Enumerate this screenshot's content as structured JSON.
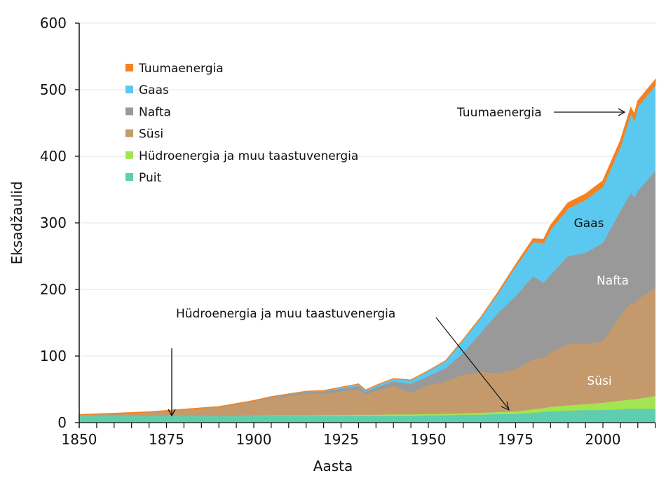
{
  "chart_data": {
    "type": "area",
    "stacked": true,
    "xlabel": "Aasta",
    "ylabel": "Eksadžaulid",
    "xlim": [
      1850,
      2015
    ],
    "ylim": [
      0,
      600
    ],
    "xticks": [
      1850,
      1875,
      1900,
      1925,
      1950,
      1975,
      2000
    ],
    "yticks": [
      0,
      100,
      200,
      300,
      400,
      500,
      600
    ],
    "grid": "horizontal",
    "legend_position": "top-left",
    "x": [
      1850,
      1860,
      1870,
      1875,
      1880,
      1890,
      1900,
      1905,
      1910,
      1915,
      1920,
      1925,
      1930,
      1932,
      1935,
      1940,
      1945,
      1950,
      1955,
      1960,
      1965,
      1970,
      1975,
      1980,
      1983,
      1985,
      1990,
      1995,
      2000,
      2005,
      2008,
      2009,
      2010,
      2015
    ],
    "series": [
      {
        "name": "Puit",
        "color": "#5ecdb0",
        "values": [
          10,
          10,
          10,
          10,
          10,
          10,
          10,
          10,
          10,
          10,
          10,
          10,
          10,
          10,
          10,
          10,
          10,
          11,
          11,
          12,
          12,
          13,
          13,
          15,
          16,
          17,
          18,
          19,
          19,
          20,
          21,
          21,
          21,
          21
        ]
      },
      {
        "name": "Hüdroenergia ja muu taastuvenergia",
        "color": "#a3e551",
        "values": [
          0,
          0,
          0,
          0,
          0,
          0,
          0.5,
          1,
          1,
          1,
          1.5,
          1.5,
          2,
          2,
          2,
          2.5,
          2.5,
          2,
          2.5,
          2,
          3,
          3,
          4,
          5,
          6,
          7,
          8,
          9,
          11,
          13,
          14,
          14,
          15,
          19
        ]
      },
      {
        "name": "Süsi",
        "color": "#c49a6c",
        "values": [
          2,
          4,
          6,
          8,
          10,
          14,
          21.5,
          26,
          29,
          33,
          31.5,
          35.5,
          38,
          30,
          36,
          42.5,
          32.5,
          43,
          48.5,
          58,
          61,
          58,
          63,
          75,
          76,
          81,
          92,
          90,
          92,
          127,
          145,
          143,
          149,
          162
        ]
      },
      {
        "name": "Nafta",
        "color": "#999999",
        "values": [
          0,
          0,
          0,
          0,
          0,
          0,
          1,
          1,
          2,
          2,
          4,
          4,
          5,
          5,
          5,
          7,
          13,
          14,
          20,
          33,
          59,
          91,
          110,
          125,
          112,
          117,
          132,
          137,
          148,
          158,
          165,
          160,
          163,
          176
        ]
      },
      {
        "name": "Gaas",
        "color": "#5bc8f0",
        "values": [
          0,
          0,
          0,
          0,
          0,
          0,
          0,
          1,
          1,
          1,
          1,
          2,
          3,
          2,
          3,
          4,
          6,
          8,
          11,
          20,
          23,
          30,
          45,
          52,
          60,
          68,
          72,
          80,
          85,
          97,
          120,
          117,
          127,
          129
        ]
      },
      {
        "name": "Tuumaenergia",
        "color": "#f58220",
        "values": [
          0,
          0,
          0,
          0,
          0,
          0,
          0,
          0,
          0,
          0,
          0,
          0,
          0,
          0,
          0,
          0,
          0,
          0,
          0,
          0,
          0,
          1,
          2,
          4,
          5,
          6,
          8,
          8,
          8,
          8,
          8,
          8,
          8,
          8
        ]
      }
    ],
    "legend_order": [
      "Tuumaenergia",
      "Gaas",
      "Nafta",
      "Süsi",
      "Hüdroenergia ja muu taastuvenergia",
      "Puit"
    ],
    "annotations": {
      "nuclear": "Tuumaenergia",
      "gas": "Gaas",
      "oil": "Nafta",
      "coal": "Süsi",
      "hydro": "Hüdroenergia ja muu taastuvenergia"
    }
  }
}
